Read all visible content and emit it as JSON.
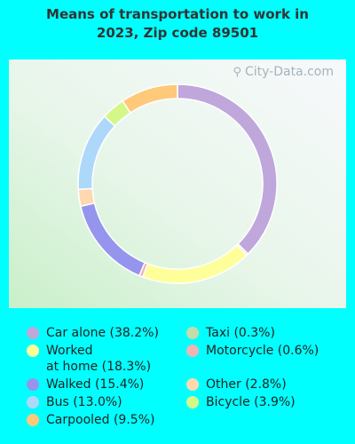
{
  "title_line1": "Means of transportation to work in",
  "title_line2": "2023, Zip code 89501",
  "watermark": "City-Data.com",
  "watermark_icon": "magnifier-icon",
  "chart_data": {
    "type": "pie",
    "donut": true,
    "title": "Means of transportation to work in 2023, Zip code 89501",
    "slices": [
      {
        "label": "Car alone",
        "value": 38.2,
        "color": "#bfa7db"
      },
      {
        "label": "Taxi",
        "value": 0.3,
        "color": "#c4dbaa"
      },
      {
        "label": "Worked at home",
        "value": 18.3,
        "color": "#ffff99"
      },
      {
        "label": "Motorcycle",
        "value": 0.6,
        "color": "#f0b4b4"
      },
      {
        "label": "Walked",
        "value": 15.4,
        "color": "#9595ee"
      },
      {
        "label": "Other",
        "value": 2.8,
        "color": "#ffd8b0"
      },
      {
        "label": "Bus",
        "value": 13.0,
        "color": "#add8fa"
      },
      {
        "label": "Bicycle",
        "value": 3.9,
        "color": "#d4f78a"
      },
      {
        "label": "Carpooled",
        "value": 9.5,
        "color": "#ffc979"
      }
    ],
    "legend": [
      {
        "text": "Car alone (38.2%)",
        "color": "#bfa7db"
      },
      {
        "text": "Taxi (0.3%)",
        "color": "#c4dbaa"
      },
      {
        "text": "Worked\nat home (18.3%)",
        "color": "#ffff99"
      },
      {
        "text": "Motorcycle (0.6%)",
        "color": "#f0b4b4"
      },
      {
        "text": "Walked (15.4%)",
        "color": "#9595ee"
      },
      {
        "text": "Other (2.8%)",
        "color": "#ffd8b0"
      },
      {
        "text": "Bus (13.0%)",
        "color": "#add8fa"
      },
      {
        "text": "Bicycle (3.9%)",
        "color": "#d4f78a"
      },
      {
        "text": "Carpooled (9.5%)",
        "color": "#ffc979"
      }
    ],
    "legend_placement": "bottom, two columns"
  }
}
